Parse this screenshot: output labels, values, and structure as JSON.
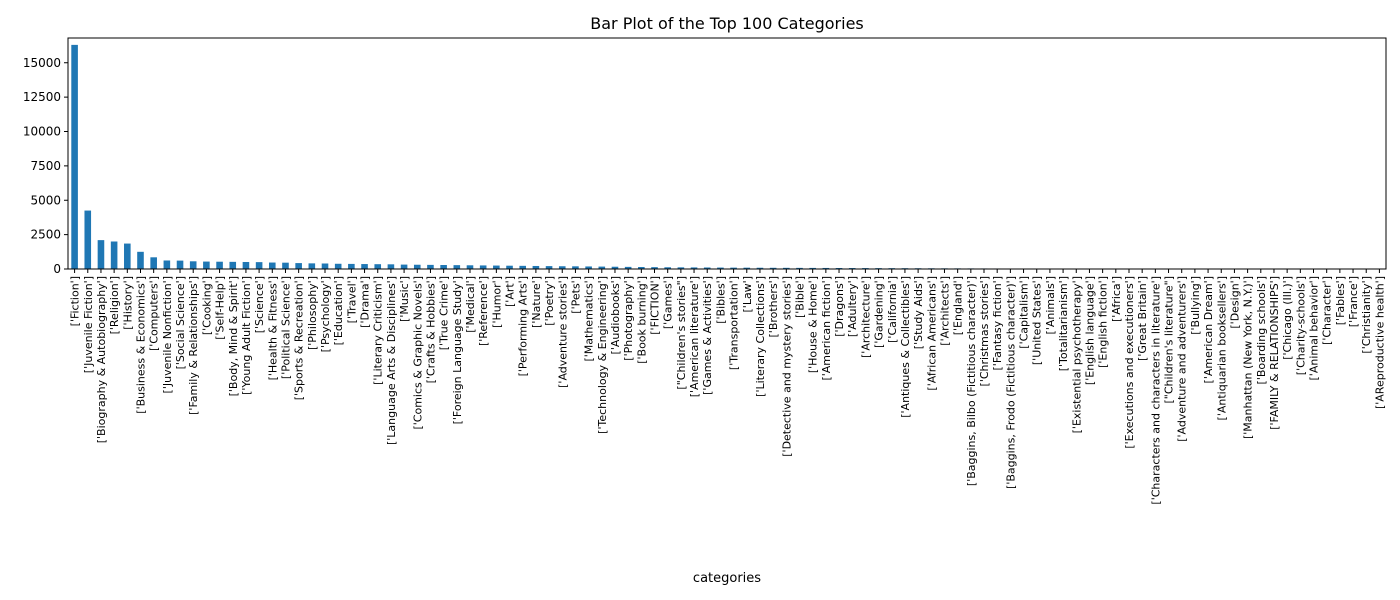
{
  "chart_data": {
    "type": "bar",
    "title": "Bar Plot of the Top 100 Categories",
    "xlabel": "categories",
    "ylabel": "",
    "ylim": [
      0,
      16800
    ],
    "yticks": [
      0,
      2500,
      5000,
      7500,
      10000,
      12500,
      15000
    ],
    "ytick_labels": [
      "0",
      "2500",
      "5000",
      "7500",
      "10000",
      "12500",
      "15000"
    ],
    "grid": false,
    "legend": "none",
    "bar_color": "#1f77b4",
    "categories": [
      "['Fiction']",
      "['Juvenile Fiction']",
      "['Biography & Autobiography']",
      "['Religion']",
      "['History']",
      "['Business & Economics']",
      "['Computers']",
      "['Juvenile Nonfiction']",
      "['Social Science']",
      "['Family & Relationships']",
      "['Cooking']",
      "['Self-Help']",
      "['Body, Mind & Spirit']",
      "['Young Adult Fiction']",
      "['Science']",
      "['Health & Fitness']",
      "['Political Science']",
      "['Sports & Recreation']",
      "['Philosophy']",
      "['Psychology']",
      "['Education']",
      "['Travel']",
      "['Drama']",
      "['Literary Criticism']",
      "['Language Arts & Disciplines']",
      "['Music']",
      "['Comics & Graphic Novels']",
      "['Crafts & Hobbies']",
      "['True Crime']",
      "['Foreign Language Study']",
      "['Medical']",
      "['Reference']",
      "['Humor']",
      "['Art']",
      "['Performing Arts']",
      "['Nature']",
      "['Poetry']",
      "['Adventure stories']",
      "['Pets']",
      "['Mathematics']",
      "['Technology & Engineering']",
      "['Audiobooks']",
      "['Photography']",
      "['Book burning']",
      "['FICTION']",
      "['Games']",
      "[\"Children's stories\"]",
      "['American literature']",
      "['Games & Activities']",
      "['Bibles']",
      "['Transportation']",
      "['Law']",
      "['Literary Collections']",
      "['Brothers']",
      "['Detective and mystery stories']",
      "['Bible']",
      "['House & Home']",
      "['American fiction']",
      "['Dragons']",
      "['Adultery']",
      "['Architecture']",
      "['Gardening']",
      "['California']",
      "['Antiques & Collectibles']",
      "['Study Aids']",
      "['African Americans']",
      "['Architects']",
      "['England']",
      "['Baggins, Bilbo (Fictitious character)']",
      "['Christmas stories']",
      "['Fantasy fiction']",
      "['Baggins, Frodo (Fictitious character)']",
      "['Capitalism']",
      "['United States']",
      "['Animals']",
      "['Totalitarianism']",
      "['Existential psychotherapy']",
      "['English language']",
      "['English fiction']",
      "['Africa']",
      "['Executions and executioners']",
      "['Great Britain']",
      "['Characters and characters in literature']",
      "[\"Children's literature\"]",
      "['Adventure and adventurers']",
      "['Bullying']",
      "['American Dream']",
      "['Antiquarian booksellers']",
      "['Design']",
      "['Manhattan (New York, N.Y.)']",
      "['Boarding schools']",
      "['FAMILY & RELATIONSHIPS']",
      "['Chicago (Ill.)']",
      "['Charity-schools']",
      "['Animal behavior']",
      "['Character']",
      "['Fables']",
      "['France']",
      "['Christianity']",
      "['AReproductive health']"
    ],
    "values": [
      16300,
      4250,
      2100,
      2000,
      1850,
      1250,
      850,
      620,
      610,
      560,
      540,
      530,
      520,
      510,
      500,
      470,
      460,
      430,
      410,
      400,
      380,
      370,
      360,
      350,
      340,
      320,
      310,
      300,
      290,
      280,
      270,
      260,
      250,
      240,
      230,
      220,
      210,
      200,
      195,
      185,
      175,
      165,
      155,
      145,
      135,
      125,
      120,
      115,
      110,
      105,
      100,
      96,
      92,
      88,
      85,
      82,
      79,
      76,
      73,
      70,
      67,
      64,
      61,
      58,
      55,
      52,
      49,
      46,
      43,
      40,
      37,
      34,
      32,
      30,
      28,
      26,
      24,
      22,
      20,
      18,
      17,
      16,
      15,
      14,
      13,
      12,
      11,
      10,
      9,
      8,
      8,
      7,
      7,
      6,
      6,
      5,
      5,
      4,
      4,
      3
    ]
  }
}
